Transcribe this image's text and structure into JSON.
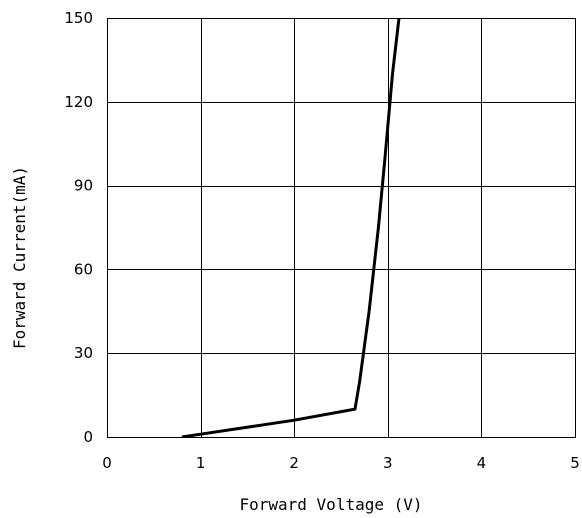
{
  "chart_data": {
    "type": "line",
    "title": "",
    "xlabel": "Forward Voltage (V)",
    "ylabel": "Forward Current(mA)",
    "xlim": [
      0,
      5
    ],
    "ylim": [
      0,
      150
    ],
    "x_ticks": [
      "0",
      "1",
      "2",
      "3",
      "4",
      "5"
    ],
    "y_ticks": [
      "0",
      "30",
      "60",
      "90",
      "120",
      "150"
    ],
    "grid": true,
    "legend": "none",
    "series": [
      {
        "color": "#000000",
        "x": [
          0.8,
          1.0,
          2.0,
          2.65,
          2.7,
          2.8,
          2.9,
          2.97,
          3.05,
          3.12
        ],
        "y": [
          0,
          1,
          6,
          10,
          20,
          45,
          75,
          100,
          130,
          150
        ]
      }
    ]
  }
}
